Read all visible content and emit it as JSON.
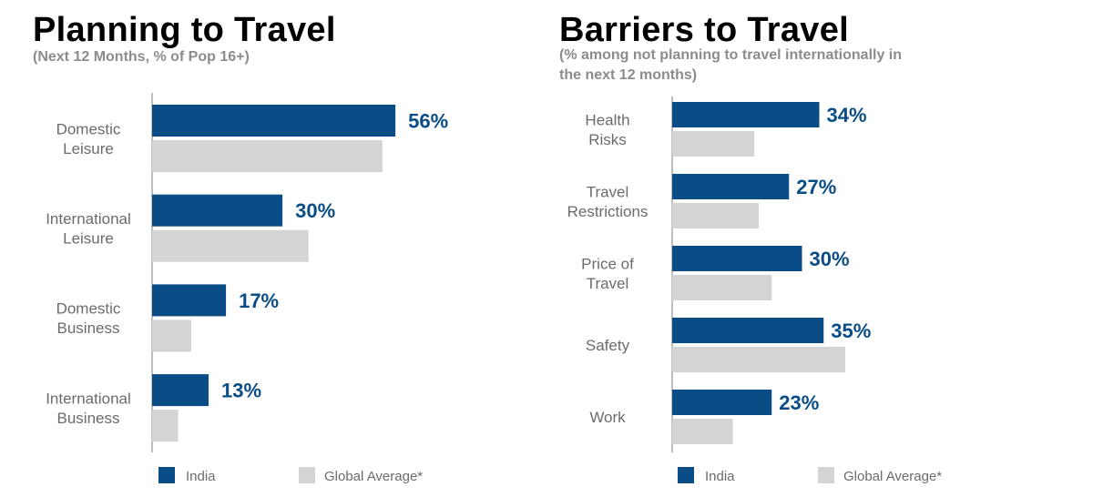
{
  "colors": {
    "india": "#0a4d86",
    "global": "#d4d4d6",
    "axis": "#aaaaaa"
  },
  "left": {
    "title": "Planning to Travel",
    "subtitle": "(Next 12 Months, % of Pop 16+)"
  },
  "right": {
    "title": "Barriers to Travel",
    "subtitle_line1": "(% among not planning to travel internationally in",
    "subtitle_line2": "the next 12 months)"
  },
  "chart_data": [
    {
      "type": "bar",
      "orientation": "horizontal",
      "title": "Planning to Travel",
      "subtitle": "(Next 12 Months, % of Pop 16+)",
      "categories": [
        [
          "Domestic",
          "Leisure"
        ],
        [
          "International",
          "Leisure"
        ],
        [
          "Domestic",
          "Business"
        ],
        [
          "International",
          "Business"
        ]
      ],
      "series": [
        {
          "name": "India",
          "values": [
            56,
            30,
            17,
            13
          ],
          "labels": [
            "56%",
            "30%",
            "17%",
            "13%"
          ]
        },
        {
          "name": "Global Average*",
          "values": [
            53,
            36,
            9,
            6
          ]
        }
      ],
      "xlim": [
        0,
        60
      ],
      "grid": false,
      "legend": "bottom"
    },
    {
      "type": "bar",
      "orientation": "horizontal",
      "title": "Barriers to Travel",
      "subtitle": "(% among not planning to travel internationally in the next 12 months)",
      "categories": [
        [
          "Health",
          "Risks"
        ],
        [
          "Travel",
          "Restrictions"
        ],
        [
          "Price of",
          "Travel"
        ],
        [
          "Safety"
        ],
        [
          "Work"
        ]
      ],
      "series": [
        {
          "name": "India",
          "values": [
            34,
            27,
            30,
            35,
            23
          ],
          "labels": [
            "34%",
            "27%",
            "30%",
            "35%",
            "23%"
          ]
        },
        {
          "name": "Global Average*",
          "values": [
            19,
            20,
            23,
            40,
            14
          ]
        }
      ],
      "xlim": [
        0,
        45
      ],
      "grid": false,
      "legend": "bottom"
    }
  ]
}
